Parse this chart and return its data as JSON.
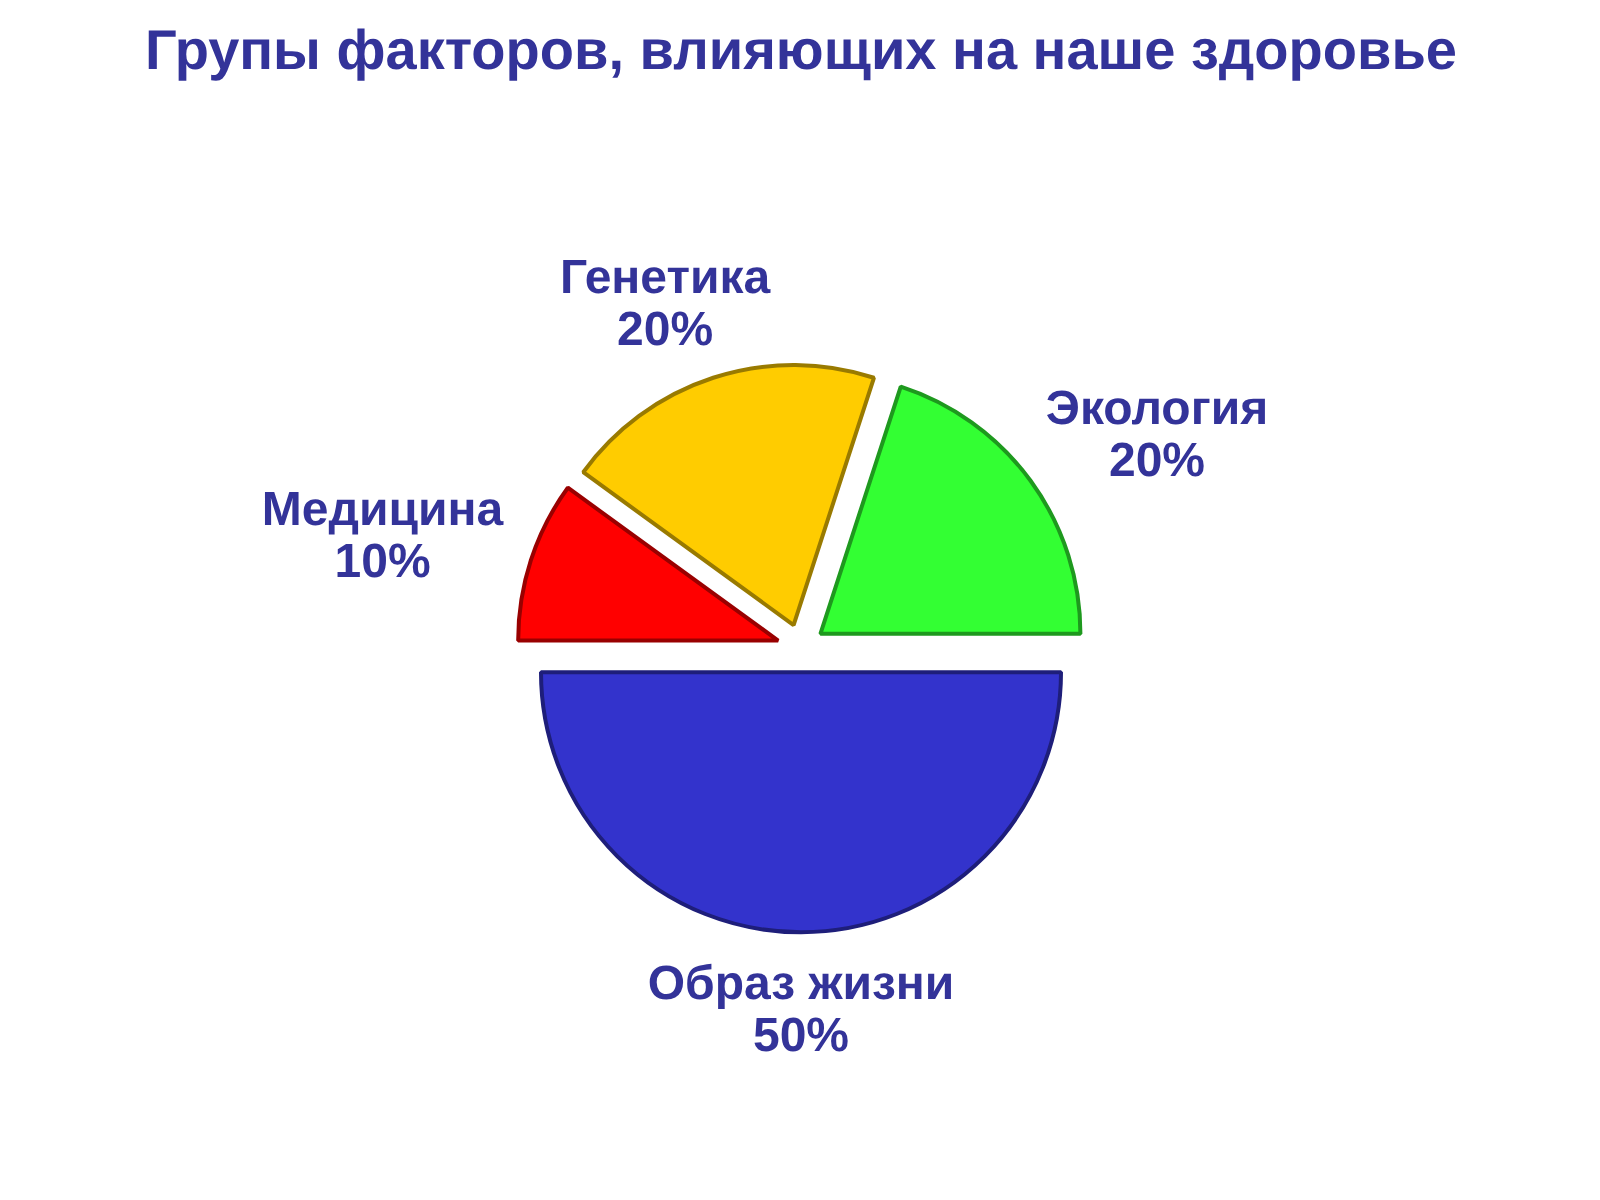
{
  "chart_data": {
    "type": "pie",
    "title": "Групы факторов, влияющих на наше здоровье",
    "categories": [
      "Экология",
      "Генетика",
      "Медицина",
      "Образ жизни"
    ],
    "values": [
      20,
      20,
      10,
      50
    ],
    "colors": [
      "#33ff33",
      "#ffcc00",
      "#ff0000",
      "#3333cc"
    ],
    "value_labels": [
      "20%",
      "20%",
      "10%",
      "50%"
    ]
  }
}
